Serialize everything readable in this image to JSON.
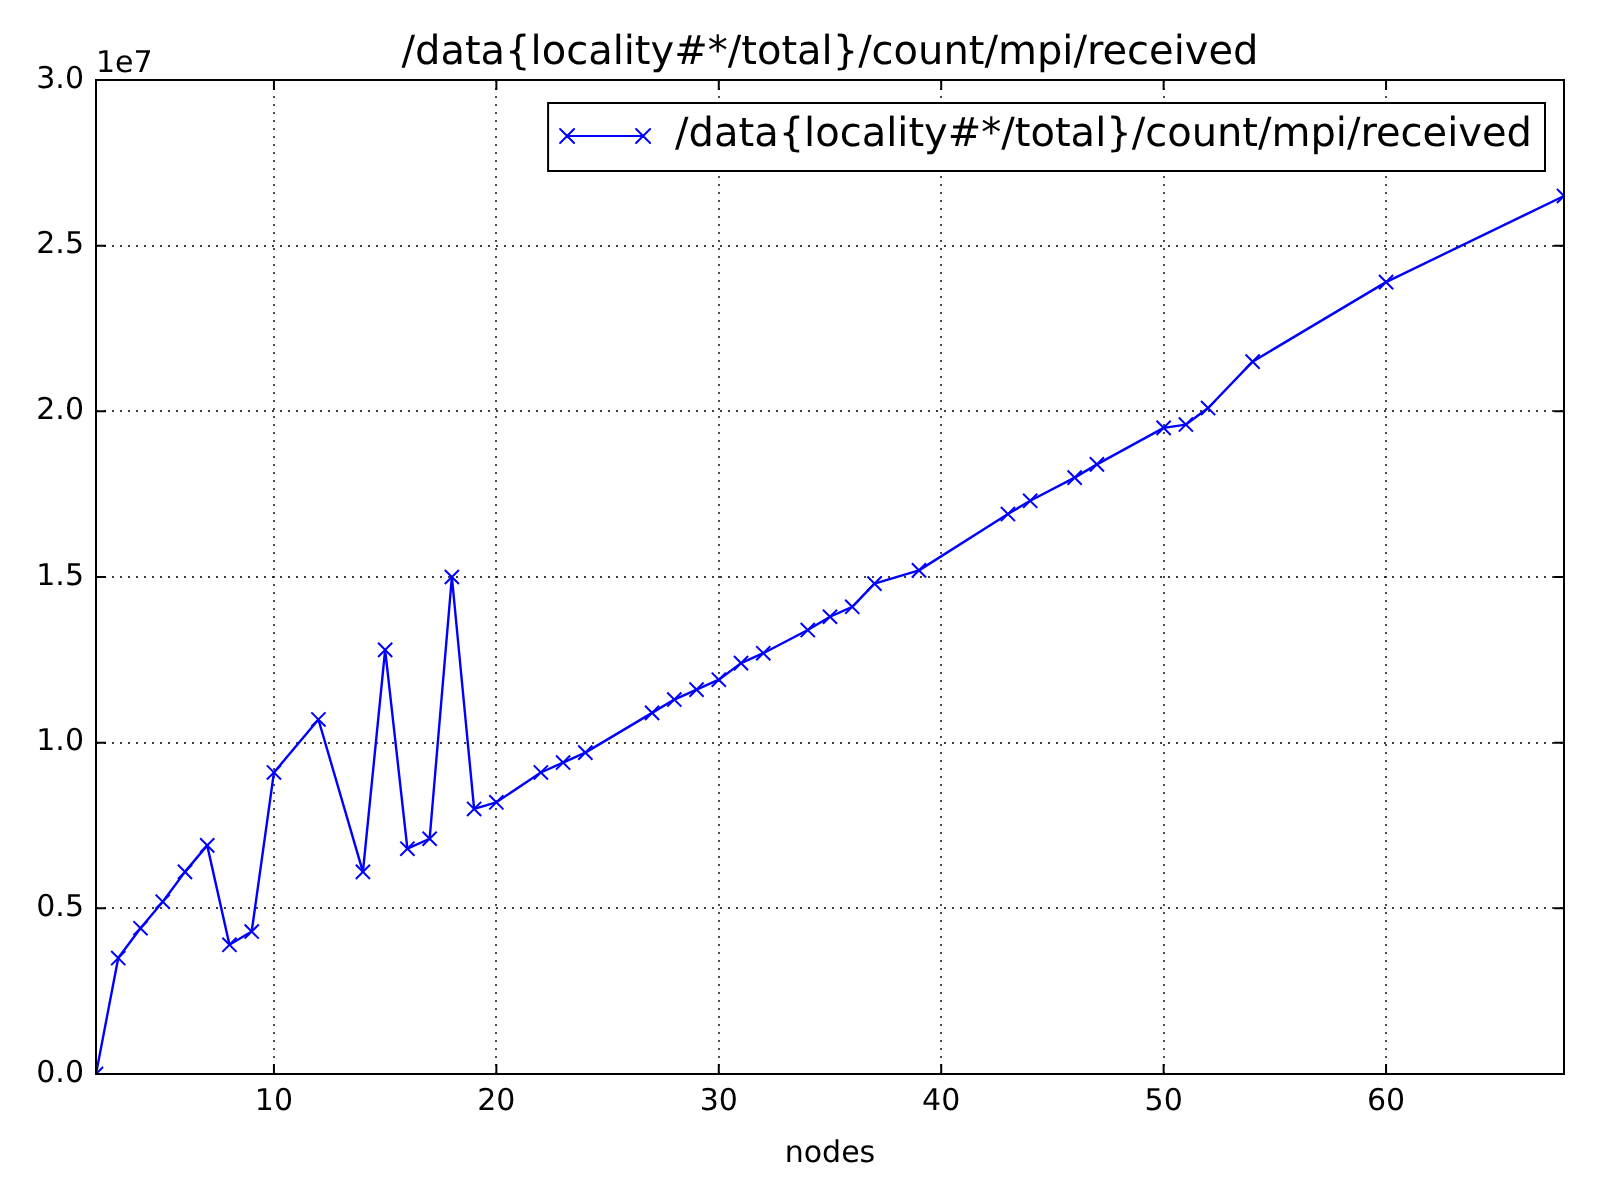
{
  "chart_data": {
    "type": "line",
    "title": "/data{locality#*/total}/count/mpi/received",
    "xlabel": "nodes",
    "annotations": [
      "1e7"
    ],
    "x": [
      2,
      3,
      4,
      5,
      6,
      7,
      8,
      9,
      10,
      12,
      14,
      15,
      16,
      17,
      18,
      19,
      20,
      22,
      23,
      24,
      27,
      28,
      29,
      30,
      31,
      32,
      34,
      35,
      36,
      37,
      39,
      43,
      44,
      46,
      47,
      50,
      51,
      52,
      54,
      60,
      68
    ],
    "series": [
      {
        "name": "/data{locality#*/total}/count/mpi/received",
        "color": "#0000ff",
        "values": [
          0,
          0.35,
          0.44,
          0.52,
          0.61,
          0.69,
          0.39,
          0.43,
          0.91,
          1.07,
          0.61,
          1.28,
          0.68,
          0.71,
          1.5,
          0.8,
          0.82,
          0.91,
          0.94,
          0.97,
          1.09,
          1.13,
          1.16,
          1.19,
          1.24,
          1.27,
          1.34,
          1.38,
          1.41,
          1.48,
          1.52,
          1.69,
          1.73,
          1.8,
          1.84,
          1.95,
          1.96,
          2.01,
          2.15,
          2.39,
          2.65
        ]
      }
    ],
    "xlim": [
      2,
      68
    ],
    "xticks": [
      10,
      20,
      30,
      40,
      50,
      60
    ],
    "ylim": [
      0,
      3
    ],
    "yticks": [
      {
        "value": 0,
        "label": "0.0"
      },
      0.5,
      {
        "value": 1,
        "label": "1.0"
      },
      1.5,
      {
        "value": 2,
        "label": "2.0"
      },
      2.5,
      {
        "value": 3,
        "label": "3.0"
      }
    ],
    "grid": true,
    "legend": "top right",
    "marker": "cross",
    "line_style": "solid"
  }
}
